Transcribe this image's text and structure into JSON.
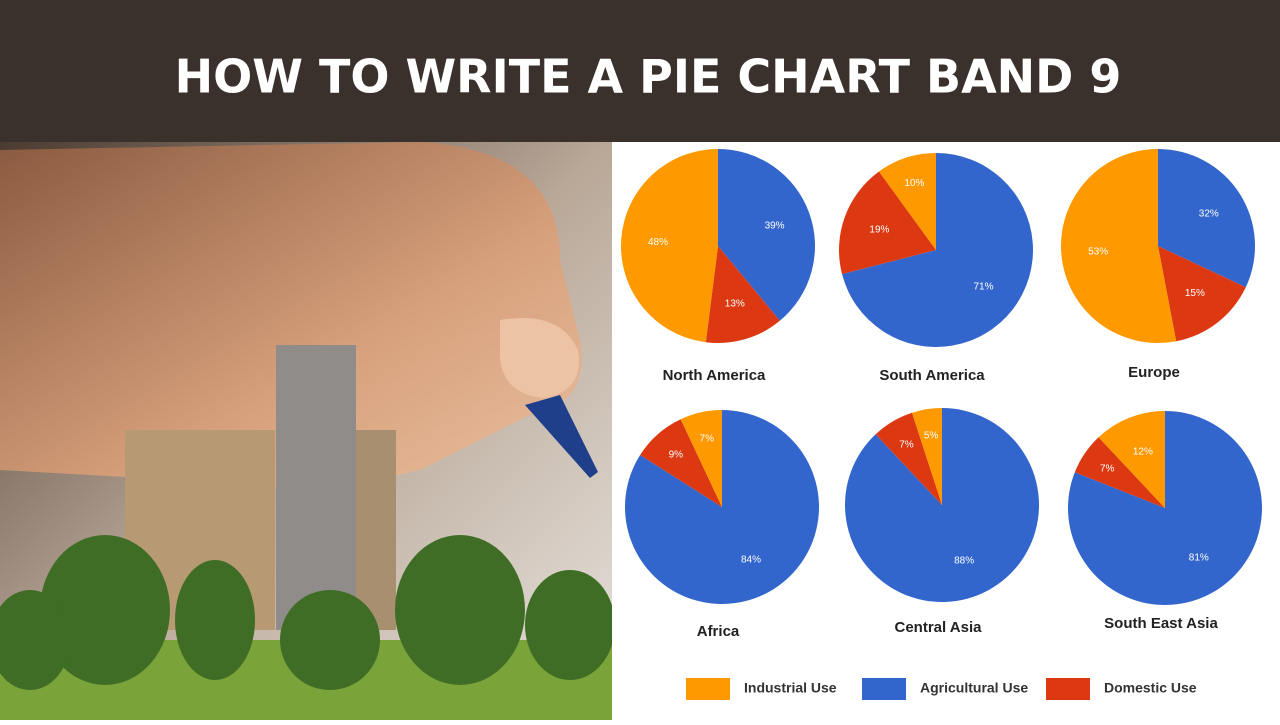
{
  "header": {
    "title": "HOW TO WRITE A PIE CHART BAND 9"
  },
  "legend": {
    "categories": [
      "Industrial Use",
      "Agricultural Use",
      "Domestic Use"
    ],
    "colors": [
      "#ff9900",
      "#3366cc",
      "#dc3912"
    ]
  },
  "chart_data": [
    {
      "type": "pie",
      "title": "North America",
      "values": [
        48,
        39,
        13
      ],
      "value_labels": [
        "48%",
        "39%",
        "13%"
      ]
    },
    {
      "type": "pie",
      "title": "South America",
      "values": [
        10,
        71,
        19
      ],
      "value_labels": [
        "10%",
        "71%",
        "19%"
      ]
    },
    {
      "type": "pie",
      "title": "Europe",
      "values": [
        53,
        32,
        15
      ],
      "value_labels": [
        "53%",
        "32%",
        "15%"
      ]
    },
    {
      "type": "pie",
      "title": "Africa",
      "values": [
        7,
        84,
        9
      ],
      "value_labels": [
        "7%",
        "84%",
        "9%"
      ]
    },
    {
      "type": "pie",
      "title": "Central Asia",
      "values": [
        5,
        88,
        7
      ],
      "value_labels": [
        "5%",
        "88%",
        "7%"
      ]
    },
    {
      "type": "pie",
      "title": "South East Asia",
      "values": [
        12,
        81,
        7
      ],
      "value_labels": [
        "12%",
        "81%",
        "7%"
      ]
    }
  ]
}
